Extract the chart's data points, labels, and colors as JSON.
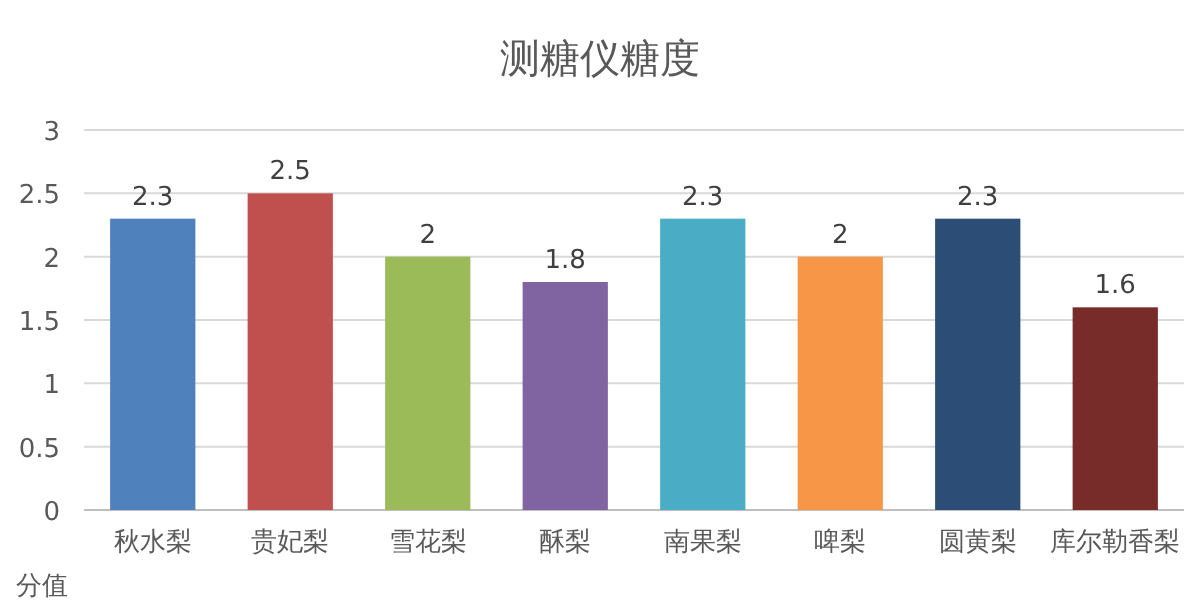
{
  "chart_data": {
    "type": "bar",
    "title": "测糖仪糖度",
    "ylabel": "分值",
    "categories": [
      "秋水梨",
      "贵妃梨",
      "雪花梨",
      "酥梨",
      "南果梨",
      "啤梨",
      "圆黄梨",
      "库尔勒香梨"
    ],
    "values": [
      2.3,
      2.5,
      2,
      1.8,
      2.3,
      2,
      2.3,
      1.6
    ],
    "colors": [
      "#4f81bd",
      "#c0504d",
      "#9bbb59",
      "#8064a2",
      "#4bacc6",
      "#f79646",
      "#2c4d75",
      "#772c2a"
    ],
    "ylim": [
      0,
      3
    ],
    "yticks": [
      0,
      0.5,
      1,
      1.5,
      2,
      2.5,
      3
    ],
    "grid": "y",
    "data_labels": true
  }
}
